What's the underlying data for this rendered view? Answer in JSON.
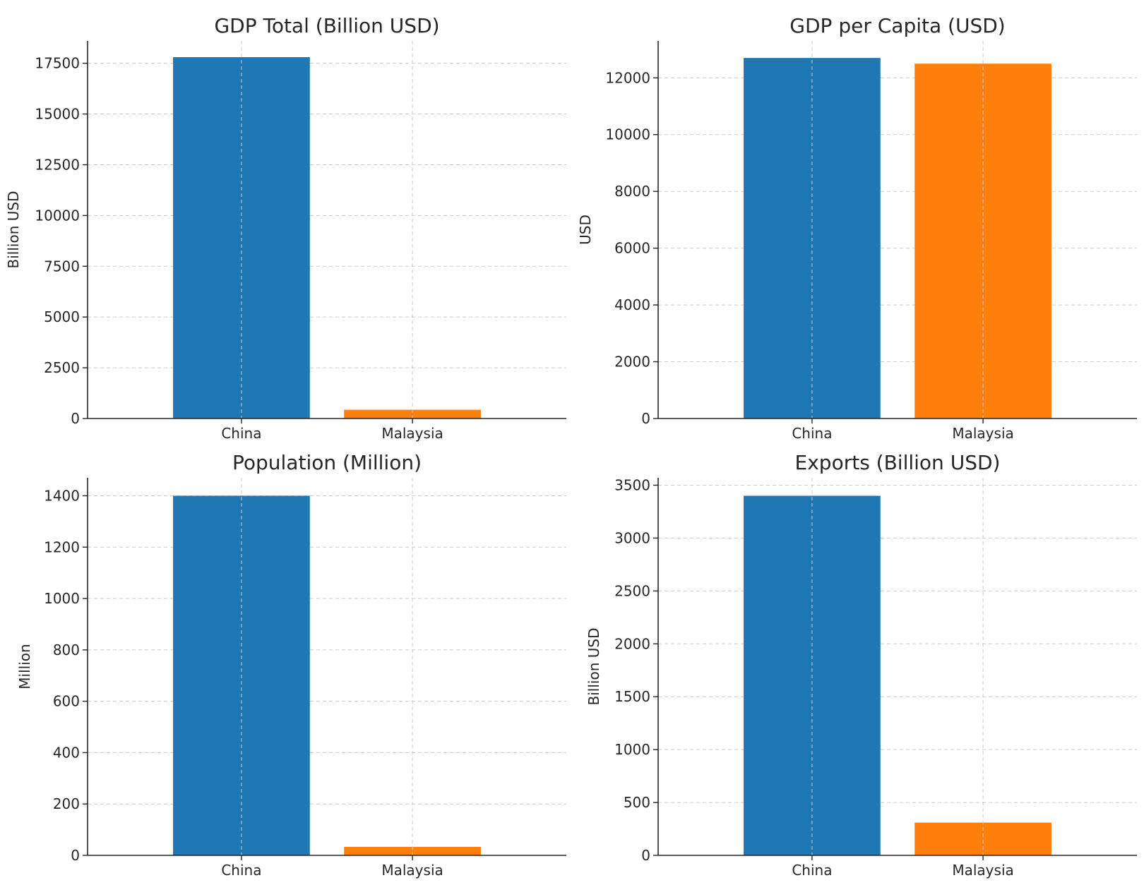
{
  "chart_data": [
    {
      "type": "bar",
      "title": "GDP Total (Billion USD)",
      "ylabel": "Billion USD",
      "categories": [
        "China",
        "Malaysia"
      ],
      "values": [
        17800,
        430
      ],
      "colors": [
        "#1f77b4",
        "#ff7f0e"
      ],
      "ylim": [
        0,
        18600
      ],
      "yticks": [
        0,
        2500,
        5000,
        7500,
        10000,
        12500,
        15000,
        17500
      ],
      "grid": true
    },
    {
      "type": "bar",
      "title": "GDP per Capita (USD)",
      "ylabel": "USD",
      "categories": [
        "China",
        "Malaysia"
      ],
      "values": [
        12700,
        12500
      ],
      "colors": [
        "#1f77b4",
        "#ff7f0e"
      ],
      "ylim": [
        0,
        13300
      ],
      "yticks": [
        0,
        2000,
        4000,
        6000,
        8000,
        10000,
        12000
      ],
      "grid": true
    },
    {
      "type": "bar",
      "title": "Population (Million)",
      "ylabel": "Million",
      "categories": [
        "China",
        "Malaysia"
      ],
      "values": [
        1400,
        33
      ],
      "colors": [
        "#1f77b4",
        "#ff7f0e"
      ],
      "ylim": [
        0,
        1470
      ],
      "yticks": [
        0,
        200,
        400,
        600,
        800,
        1000,
        1200,
        1400
      ],
      "grid": true
    },
    {
      "type": "bar",
      "title": "Exports (Billion USD)",
      "ylabel": "Billion USD",
      "categories": [
        "China",
        "Malaysia"
      ],
      "values": [
        3400,
        310
      ],
      "colors": [
        "#1f77b4",
        "#ff7f0e"
      ],
      "ylim": [
        0,
        3570
      ],
      "yticks": [
        0,
        500,
        1000,
        1500,
        2000,
        2500,
        3000,
        3500
      ],
      "grid": true
    }
  ]
}
